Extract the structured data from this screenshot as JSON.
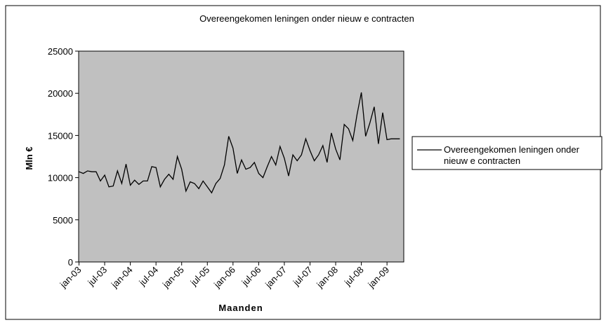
{
  "chart_data": {
    "type": "line",
    "title": "Overeengekomen leningen onder nieuw e contracten",
    "x_label": "Maanden",
    "y_label": "Mln €",
    "categories": [
      "jan-03",
      null,
      null,
      null,
      null,
      null,
      "jul-03",
      null,
      null,
      null,
      null,
      null,
      "jan-04",
      null,
      null,
      null,
      null,
      null,
      "jul-04",
      null,
      null,
      null,
      null,
      null,
      "jan-05",
      null,
      null,
      null,
      null,
      null,
      "jul-05",
      null,
      null,
      null,
      null,
      null,
      "jan-06",
      null,
      null,
      null,
      null,
      null,
      "jul-06",
      null,
      null,
      null,
      null,
      null,
      "jan-07",
      null,
      null,
      null,
      null,
      null,
      "jul-07",
      null,
      null,
      null,
      null,
      null,
      "jan-08",
      null,
      null,
      null,
      null,
      null,
      "jul-08",
      null,
      null,
      null,
      null,
      null,
      "jan-09",
      null,
      null,
      null
    ],
    "series": [
      {
        "name": "Overeengekomen leningen onder nieuw e contracten",
        "color": "#000000",
        "values": [
          10700,
          10500,
          10800,
          10700,
          10700,
          9600,
          10300,
          8900,
          9000,
          10800,
          9300,
          11600,
          9100,
          9700,
          9200,
          9600,
          9600,
          11300,
          11200,
          8900,
          9800,
          10400,
          9800,
          12500,
          11000,
          8400,
          9500,
          9300,
          8700,
          9600,
          8900,
          8200,
          9300,
          9900,
          11500,
          14900,
          13500,
          10500,
          12100,
          11000,
          11200,
          11800,
          10500,
          10000,
          11300,
          12500,
          11500,
          13700,
          12300,
          10200,
          12700,
          12000,
          12700,
          14600,
          13200,
          12000,
          12700,
          13800,
          11800,
          15300,
          13400,
          12100,
          16300,
          15800,
          14400,
          17500,
          20100,
          14900,
          16500,
          18400,
          14000,
          17700,
          14500,
          14600,
          14600,
          14600
        ]
      }
    ],
    "ylim": [
      0,
      25000
    ],
    "yticks": [
      0,
      5000,
      10000,
      15000,
      20000,
      25000
    ],
    "grid": false,
    "legend": "right",
    "plot_background": "#c0c0c0"
  }
}
